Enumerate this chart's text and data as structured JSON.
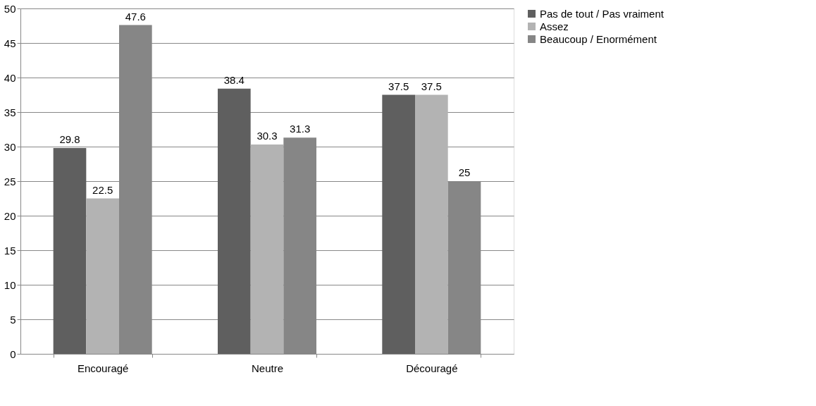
{
  "chart_data": {
    "type": "bar",
    "categories": [
      "Encouragé",
      "Neutre",
      "Découragé"
    ],
    "series": [
      {
        "name": "Pas de tout / Pas vraiment",
        "color": "#5f5f5f",
        "values": [
          29.8,
          38.4,
          37.5
        ]
      },
      {
        "name": "Assez",
        "color": "#b3b3b3",
        "values": [
          22.5,
          30.3,
          37.5
        ]
      },
      {
        "name": "Beaucoup / Enormément",
        "color": "#868686",
        "values": [
          47.6,
          31.3,
          25
        ]
      }
    ],
    "ylim": [
      0,
      50
    ],
    "yticks": [
      0,
      5,
      10,
      15,
      20,
      25,
      30,
      35,
      40,
      45,
      50
    ],
    "grid": "y",
    "legend": "right",
    "data_labels": true
  }
}
